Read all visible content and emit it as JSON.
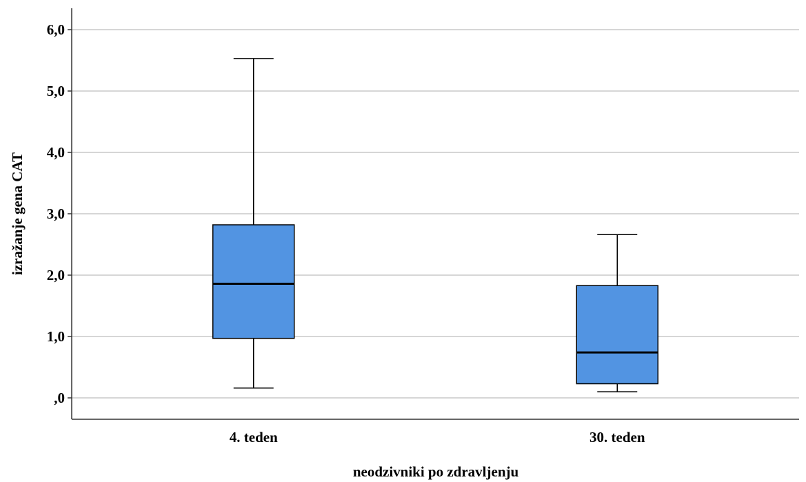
{
  "chart_data": {
    "type": "boxplot",
    "xlabel": "neodzivniki po zdravljenju",
    "ylabel": "izražanje gena CAT",
    "ylim": [
      -0.35,
      6.35
    ],
    "yticks": [
      0,
      1,
      2,
      3,
      4,
      5,
      6
    ],
    "ytick_labels": [
      ",0",
      "1,0",
      "2,0",
      "3,0",
      "4,0",
      "5,0",
      "6,0"
    ],
    "grid": true,
    "categories": [
      "4. teden",
      "30. teden"
    ],
    "boxes": [
      {
        "category": "4. teden",
        "min": 0.16,
        "q1": 0.97,
        "median": 1.86,
        "q3": 2.82,
        "max": 5.53
      },
      {
        "category": "30. teden",
        "min": 0.1,
        "q1": 0.23,
        "median": 0.74,
        "q3": 1.83,
        "max": 2.66
      }
    ],
    "box_fill": "#5294E2",
    "box_stroke": "#000000",
    "grid_color": "#C8C8C8"
  }
}
